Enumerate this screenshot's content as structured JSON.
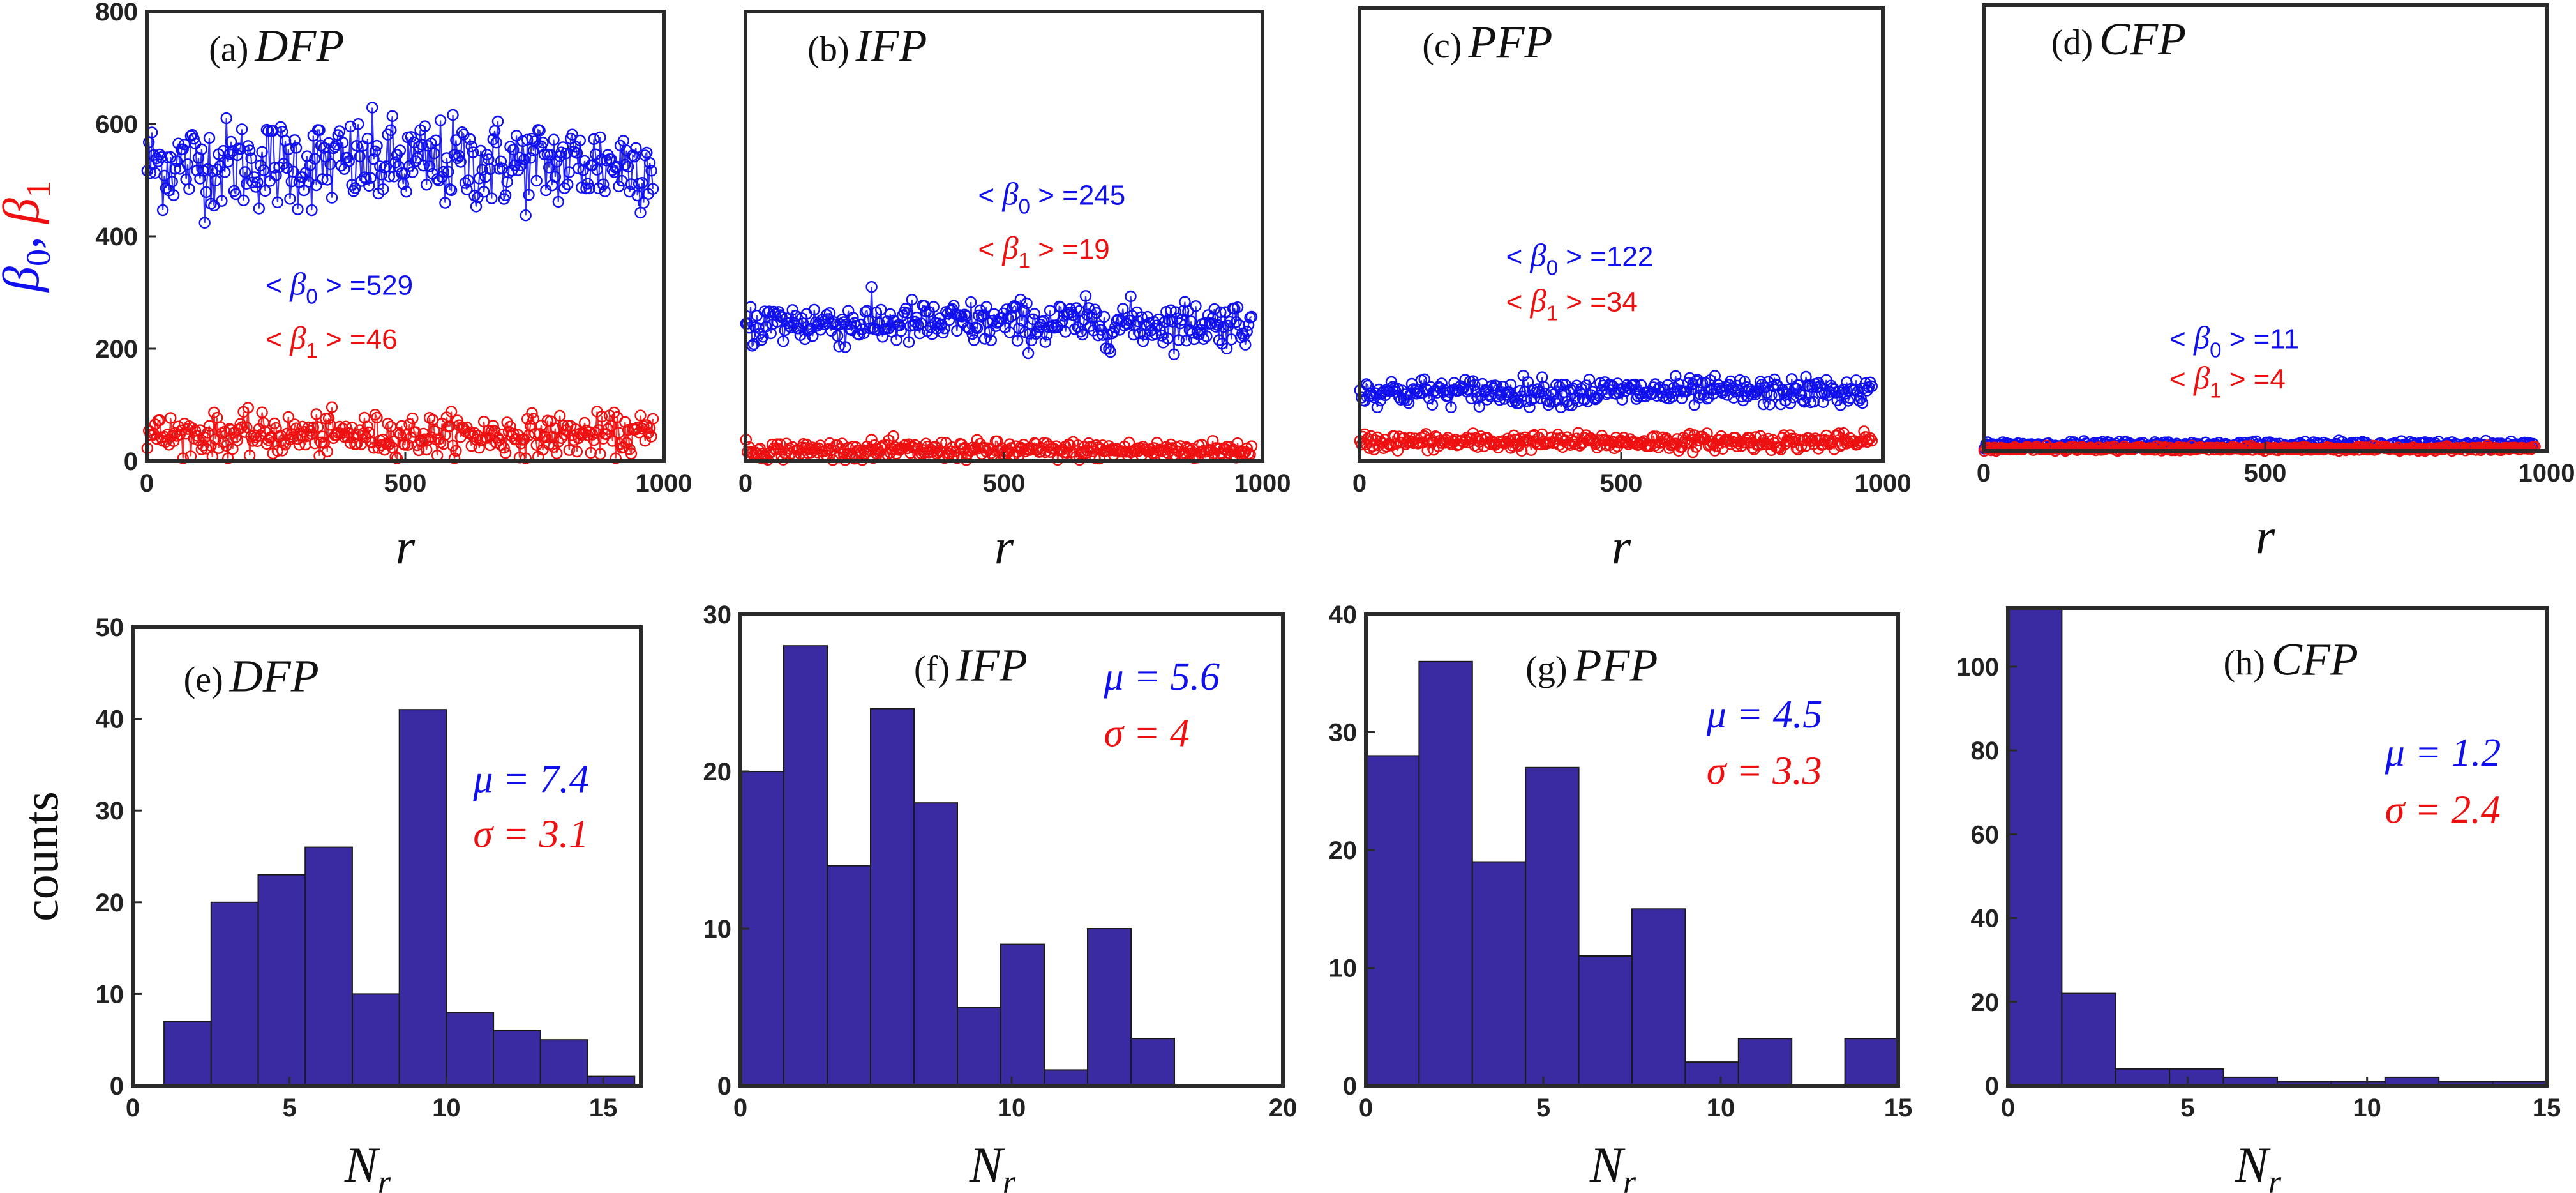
{
  "chart_data": [
    {
      "panel": "(a)",
      "label": "DFP",
      "type": "scatter",
      "xlabel": "r",
      "ylabel": [
        "β0",
        ", ",
        "β1"
      ],
      "xlim": [
        0,
        1000
      ],
      "ylim": [
        0,
        800
      ],
      "xticks": [
        0,
        500,
        1000
      ],
      "yticks": [
        0,
        200,
        400,
        600,
        800
      ],
      "x_max": 980,
      "series": [
        {
          "name": "β0",
          "color": "#1010ee",
          "mean": 529,
          "spread": 40,
          "clip": [
            410,
            660
          ]
        },
        {
          "name": "β1",
          "color": "#ee1010",
          "mean": 46,
          "spread": 18,
          "clip": [
            5,
            110
          ]
        }
      ],
      "annotations": {
        "b0": "< β0 > =529",
        "b1": "< β1 > =46",
        "b0_value": "529",
        "b1_value": "46"
      }
    },
    {
      "panel": "(b)",
      "label": "IFP",
      "type": "scatter",
      "xlabel": "r",
      "ylabel": "",
      "xlim": [
        0,
        1000
      ],
      "ylim": [
        0,
        800
      ],
      "xticks": [
        0,
        500,
        1000
      ],
      "yticks": [],
      "x_max": 980,
      "series": [
        {
          "name": "β0",
          "color": "#1010ee",
          "mean": 245,
          "spread": 20,
          "clip": [
            190,
            310
          ]
        },
        {
          "name": "β1",
          "color": "#ee1010",
          "mean": 19,
          "spread": 8,
          "clip": [
            2,
            60
          ]
        }
      ],
      "annotations": {
        "b0": "< β0 > =245",
        "b1": "< β1 > =19",
        "b0_value": "245",
        "b1_value": "19"
      }
    },
    {
      "panel": "(c)",
      "label": "PFP",
      "type": "scatter",
      "xlabel": "r",
      "ylabel": "",
      "xlim": [
        0,
        1000
      ],
      "ylim": [
        0,
        800
      ],
      "xticks": [
        0,
        500,
        1000
      ],
      "yticks": [],
      "x_max": 980,
      "series": [
        {
          "name": "β0",
          "color": "#1010ee",
          "mean": 122,
          "spread": 12,
          "clip": [
            95,
            175
          ]
        },
        {
          "name": "β1",
          "color": "#ee1010",
          "mean": 34,
          "spread": 7,
          "clip": [
            15,
            70
          ]
        }
      ],
      "annotations": {
        "b0": "< β0 > =122",
        "b1": "< β1 > =34",
        "b0_value": "122",
        "b1_value": "34"
      }
    },
    {
      "panel": "(d)",
      "label": "CFP",
      "type": "scatter",
      "xlabel": "r",
      "ylabel": "",
      "xlim": [
        0,
        1000
      ],
      "ylim": [
        0,
        800
      ],
      "xticks": [
        0,
        500,
        1000
      ],
      "yticks": [],
      "x_max": 980,
      "series": [
        {
          "name": "β0",
          "color": "#1010ee",
          "mean": 11,
          "spread": 3,
          "clip": [
            4,
            22
          ]
        },
        {
          "name": "β1",
          "color": "#ee1010",
          "mean": 4,
          "spread": 2,
          "clip": [
            0,
            12
          ]
        }
      ],
      "annotations": {
        "b0": "< β0 > =11",
        "b1": "< β1 > =4",
        "b0_value": "11",
        "b1_value": "4"
      }
    },
    {
      "panel": "(e)",
      "label": "DFP",
      "type": "bar",
      "xlabel": "Nr",
      "ylabel": "counts",
      "xlim": [
        0,
        16.2
      ],
      "ylim": [
        0,
        50
      ],
      "xticks": [
        0,
        5,
        10,
        15
      ],
      "yticks": [
        0,
        10,
        20,
        30,
        40,
        50
      ],
      "bin_start": 1,
      "bin_width": 1.5,
      "values": [
        7,
        20,
        23,
        26,
        10,
        41,
        8,
        6,
        5,
        1
      ],
      "mu": "μ = 7.4",
      "sigma": "σ = 3.1"
    },
    {
      "panel": "(f)",
      "label": "IFP",
      "type": "bar",
      "xlabel": "Nr",
      "ylabel": "",
      "xlim": [
        0,
        20
      ],
      "ylim": [
        0,
        30
      ],
      "xticks": [
        0,
        10,
        20
      ],
      "yticks": [
        0,
        10,
        20,
        30
      ],
      "bin_start": 0,
      "bin_width": 1.6,
      "values": [
        20,
        28,
        14,
        24,
        18,
        5,
        9,
        1,
        10,
        3
      ],
      "mu": "μ = 5.6",
      "sigma": "σ = 4"
    },
    {
      "panel": "(g)",
      "label": "PFP",
      "type": "bar",
      "xlabel": "Nr",
      "ylabel": "",
      "xlim": [
        0,
        15
      ],
      "ylim": [
        0,
        40
      ],
      "xticks": [
        0,
        5,
        10,
        15
      ],
      "yticks": [
        0,
        10,
        20,
        30,
        40
      ],
      "bin_start": 0,
      "bin_width": 1.5,
      "values": [
        28,
        36,
        19,
        27,
        11,
        15,
        2,
        4,
        0,
        4
      ],
      "mu": "μ = 4.5",
      "sigma": "σ = 3.3"
    },
    {
      "panel": "(h)",
      "label": "CFP",
      "type": "bar",
      "xlabel": "Nr",
      "ylabel": "",
      "xlim": [
        0,
        15
      ],
      "ylim": [
        0,
        114
      ],
      "xticks": [
        0,
        5,
        10,
        15
      ],
      "yticks": [
        0,
        20,
        40,
        60,
        80,
        100
      ],
      "bin_start": 0,
      "bin_width": 1.5,
      "values": [
        114,
        22,
        4,
        4,
        2,
        1,
        1,
        2,
        1,
        1
      ],
      "mu": "μ = 1.2",
      "sigma": "σ = 2.4"
    }
  ],
  "colors": {
    "beta0": "#1010ee",
    "beta1": "#ee1010",
    "bar_fill": "#3b2ba3",
    "bar_edge": "#1a1a1a",
    "mu": "#1010ee",
    "sigma": "#ee1010"
  }
}
